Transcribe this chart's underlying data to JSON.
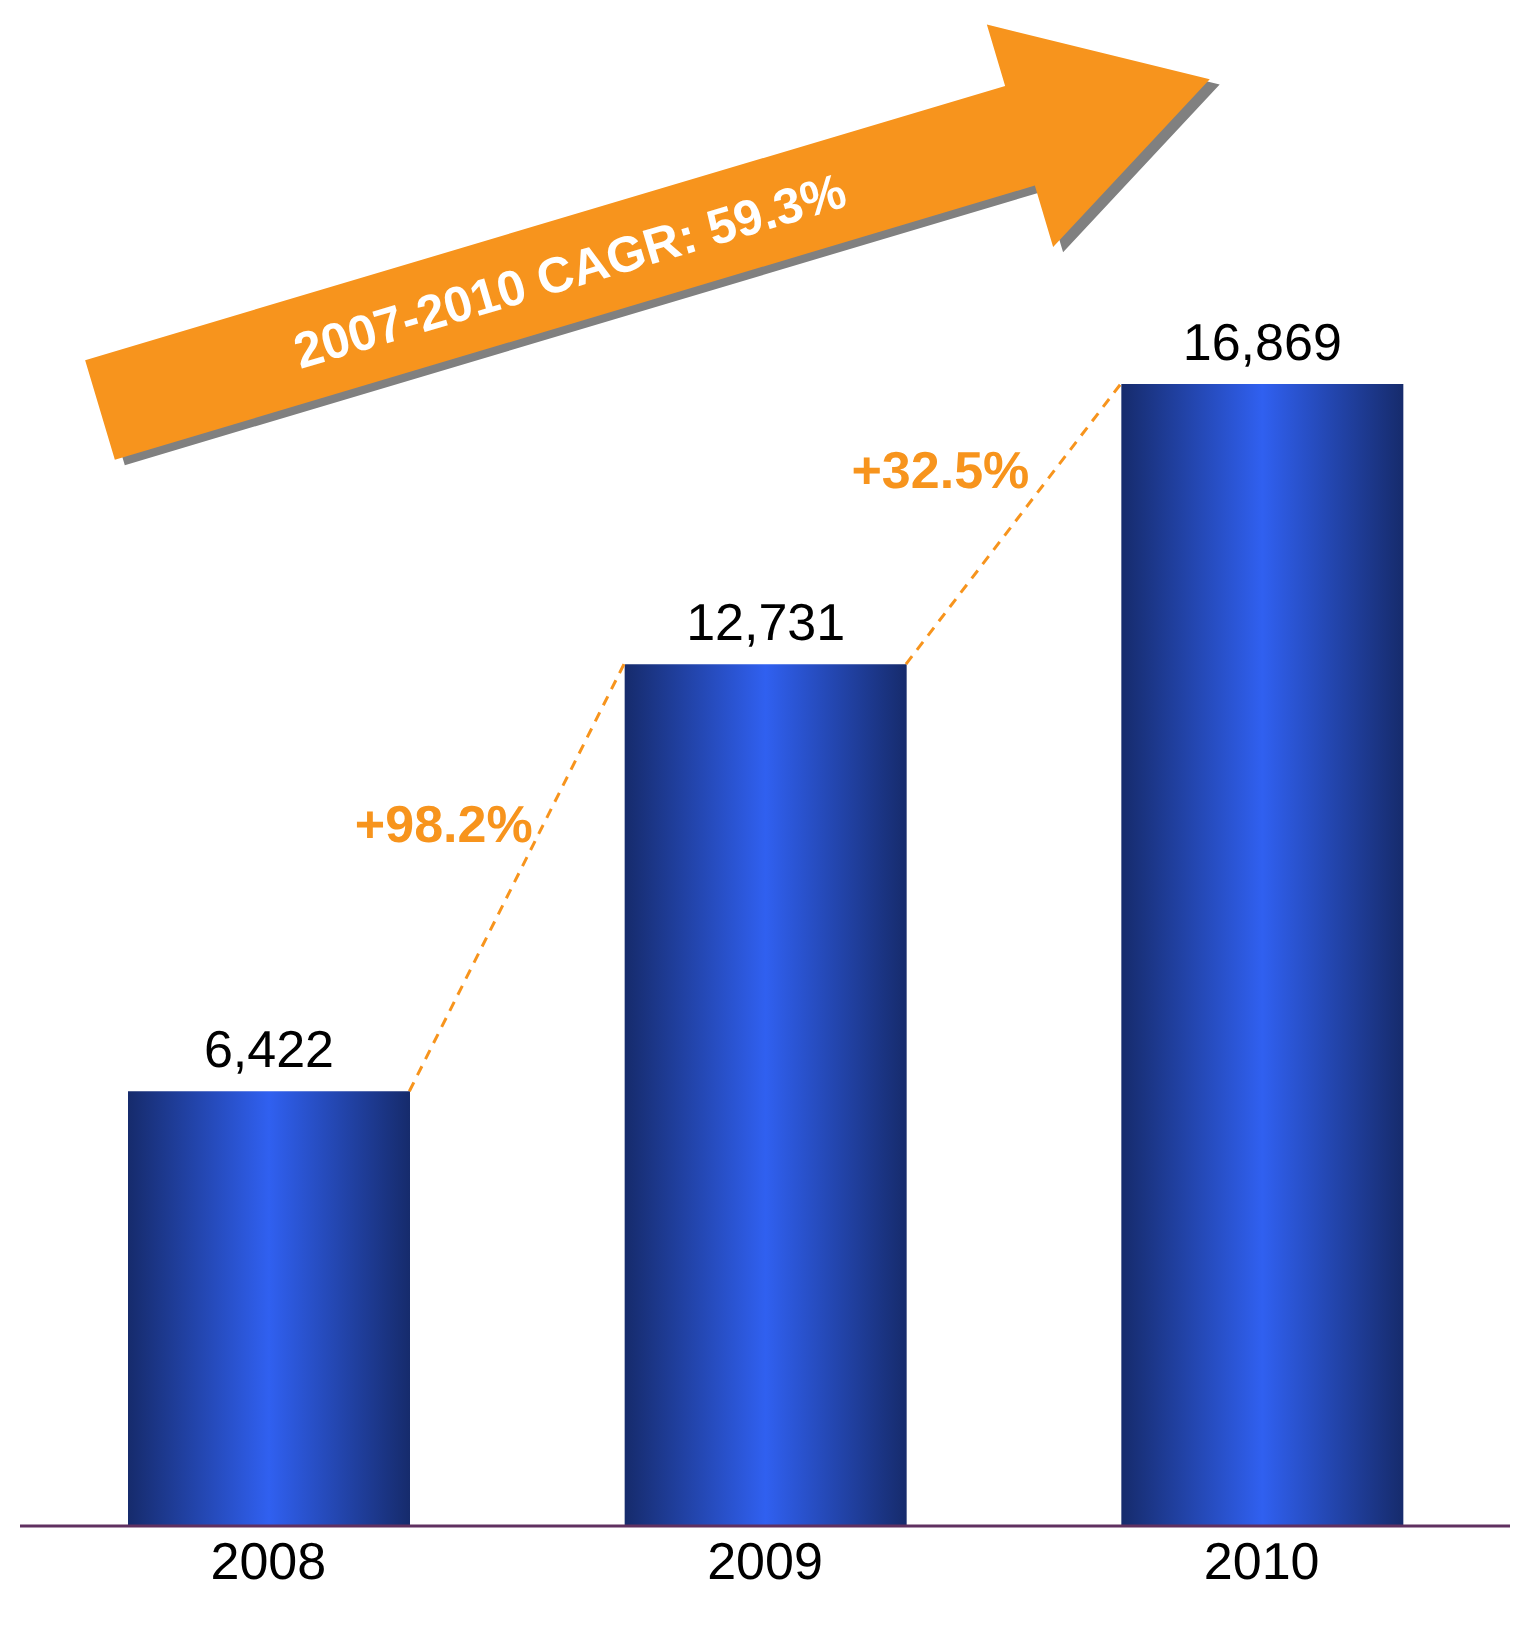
{
  "chart_data": {
    "type": "bar",
    "categories": [
      "2008",
      "2009",
      "2010"
    ],
    "values": [
      6422,
      12731,
      16869
    ],
    "color": "#3060f0",
    "value_labels": [
      "6,422",
      "12,731",
      "16,869"
    ],
    "grid": false,
    "legend": false,
    "annotations": [
      "2007-2010 CAGR: 59.3%",
      "+98.2%",
      "+32.5%"
    ]
  }
}
